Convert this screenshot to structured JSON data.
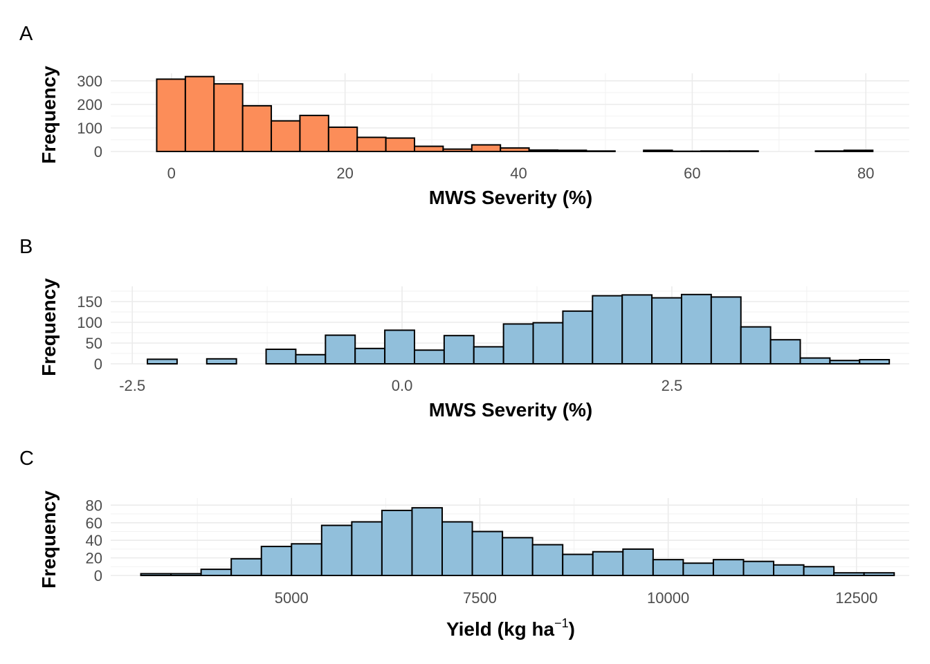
{
  "chart_data": [
    {
      "type": "bar",
      "panel_tag": "A",
      "xlabel": "MWS Severity (%)",
      "ylabel": "Frequency",
      "fill": "#FC8D59",
      "xlim": [
        -7,
        85
      ],
      "ylim": [
        0,
        320
      ],
      "x_ticks": [
        0,
        20,
        40,
        60,
        80
      ],
      "x_tick_labels": [
        "0",
        "20",
        "40",
        "60",
        "80"
      ],
      "y_ticks": [
        0,
        100,
        200,
        300
      ],
      "y_tick_labels": [
        "0",
        "100",
        "200",
        "300"
      ],
      "grid": true,
      "bin_edges": [
        -1.7,
        1.6,
        4.9,
        8.2,
        11.5,
        14.8,
        18.1,
        21.4,
        24.7,
        28.0,
        31.3,
        34.6,
        37.9,
        41.2,
        44.5,
        47.8,
        51.1,
        54.4,
        57.7,
        61.0,
        64.3,
        67.6,
        70.9,
        74.2,
        77.5,
        80.8
      ],
      "values": [
        307,
        318,
        287,
        194,
        130,
        153,
        103,
        60,
        57,
        22,
        10,
        28,
        15,
        6,
        5,
        2,
        0,
        5,
        1,
        2,
        2,
        0,
        0,
        2,
        5
      ]
    },
    {
      "type": "bar",
      "panel_tag": "B",
      "xlabel": "MWS Severity (%)",
      "ylabel": "Frequency",
      "fill": "#91BFDB",
      "xlim": [
        -2.7,
        4.7
      ],
      "ylim": [
        0,
        180
      ],
      "x_ticks": [
        -2.5,
        0.0,
        2.5
      ],
      "x_tick_labels": [
        "-2.5",
        "0.0",
        "2.5"
      ],
      "y_ticks": [
        0,
        50,
        100,
        150
      ],
      "y_tick_labels": [
        "0",
        "50",
        "100",
        "150"
      ],
      "grid": true,
      "bin_edges": [
        -2.36,
        -2.085,
        -1.81,
        -1.535,
        -1.26,
        -0.985,
        -0.71,
        -0.435,
        -0.16,
        0.115,
        0.39,
        0.665,
        0.94,
        1.215,
        1.49,
        1.765,
        2.04,
        2.315,
        2.59,
        2.865,
        3.14,
        3.415,
        3.69,
        3.965,
        4.24,
        4.515
      ],
      "values": [
        11,
        0,
        12,
        0,
        35,
        22,
        69,
        37,
        81,
        33,
        68,
        41,
        96,
        99,
        127,
        164,
        166,
        159,
        167,
        161,
        89,
        58,
        14,
        8,
        10
      ]
    },
    {
      "type": "bar",
      "panel_tag": "C",
      "xlabel": "Yield (kg ha",
      "xlabel_sup": "−1",
      "xlabel_end": ")",
      "ylabel": "Frequency",
      "fill": "#91BFDB",
      "xlim": [
        2600,
        13200
      ],
      "ylim": [
        0,
        85
      ],
      "x_ticks": [
        5000,
        7500,
        10000,
        12500
      ],
      "x_tick_labels": [
        "5000",
        "7500",
        "10000",
        "12500"
      ],
      "y_ticks": [
        0,
        20,
        40,
        60,
        80
      ],
      "y_tick_labels": [
        "0",
        "20",
        "40",
        "60",
        "80"
      ],
      "grid": true,
      "bin_edges": [
        3000,
        3400,
        3800,
        4200,
        4600,
        5000,
        5400,
        5800,
        6200,
        6600,
        7000,
        7400,
        7800,
        8200,
        8600,
        9000,
        9400,
        9800,
        10200,
        10600,
        11000,
        11400,
        11800,
        12200,
        12600,
        13000
      ],
      "values": [
        2,
        2,
        7,
        19,
        33,
        36,
        57,
        61,
        74,
        77,
        61,
        50,
        43,
        35,
        24,
        27,
        30,
        18,
        14,
        18,
        16,
        12,
        10,
        3,
        3
      ]
    }
  ]
}
